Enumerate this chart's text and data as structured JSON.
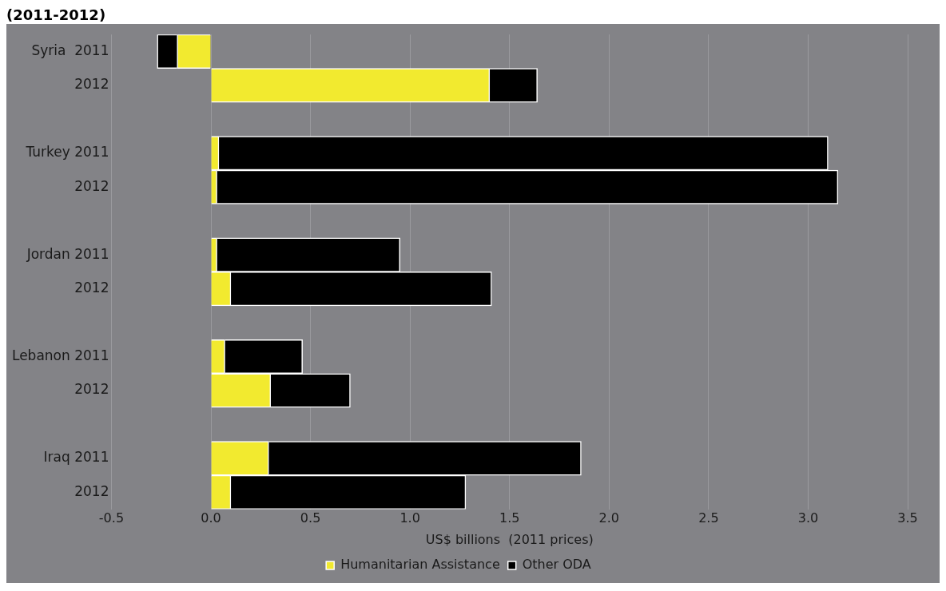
{
  "chart_data": {
    "type": "bar",
    "orientation": "horizontal",
    "stacked": true,
    "title": "(2011-2012)",
    "xlabel": "US$ billions  (2011 prices)",
    "categories": [
      "Syria  2011",
      "2012",
      null,
      "Turkey 2011",
      "2012",
      null,
      "Jordan 2011",
      "2012",
      null,
      "Lebanon 2011",
      "2012",
      null,
      "Iraq 2011",
      "2012"
    ],
    "series": [
      {
        "name": "Humanitarian Assistance",
        "color": "#f2ea2f",
        "values": [
          -0.17,
          1.4,
          null,
          0.04,
          0.03,
          null,
          0.03,
          0.1,
          null,
          0.07,
          0.3,
          null,
          0.29,
          0.1
        ]
      },
      {
        "name": "Other ODA",
        "color": "#000000",
        "values": [
          -0.1,
          0.24,
          null,
          3.06,
          3.12,
          null,
          0.92,
          1.31,
          null,
          0.39,
          0.4,
          null,
          1.57,
          1.18
        ]
      }
    ],
    "xlim": [
      -0.5,
      3.5
    ],
    "xticks": [
      {
        "value": -0.5,
        "label": "-0.5"
      },
      {
        "value": 0,
        "label": "0.0"
      },
      {
        "value": 0.5,
        "label": "0.5"
      },
      {
        "value": 1,
        "label": "1.0"
      },
      {
        "value": 1.5,
        "label": "1.5"
      },
      {
        "value": 2,
        "label": "2.0"
      },
      {
        "value": 2.5,
        "label": "2.5"
      },
      {
        "value": 3,
        "label": "3.0"
      },
      {
        "value": 3.5,
        "label": "3.5"
      }
    ],
    "grid": "x",
    "legend": "bottom"
  }
}
